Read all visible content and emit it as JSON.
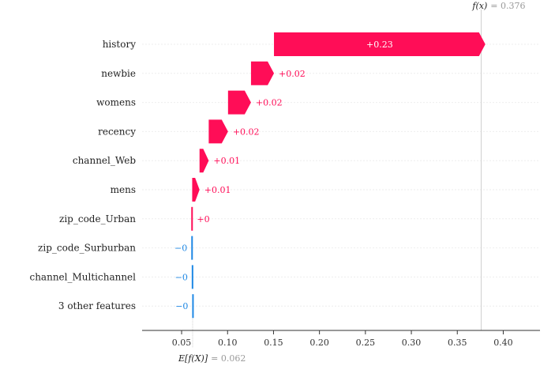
{
  "chart_data": {
    "type": "waterfall",
    "base_value": 0.062,
    "final_value": 0.376,
    "base_label": "E[f(X)]",
    "base_value_label": "= 0.062",
    "final_label": "f(x)",
    "final_value_label": "= 0.376",
    "xlim": [
      0.007,
      0.44
    ],
    "xticks": [
      0.05,
      0.1,
      0.15,
      0.2,
      0.25,
      0.3,
      0.35,
      0.4
    ],
    "xtick_labels": [
      "0.05",
      "0.10",
      "0.15",
      "0.20",
      "0.25",
      "0.30",
      "0.35",
      "0.40"
    ],
    "features": [
      {
        "name": "history",
        "contribution": 0.23,
        "label": "+0.23"
      },
      {
        "name": "newbie",
        "contribution": 0.025,
        "label": "+0.02"
      },
      {
        "name": "womens",
        "contribution": 0.025,
        "label": "+0.02"
      },
      {
        "name": "recency",
        "contribution": 0.021,
        "label": "+0.02"
      },
      {
        "name": "channel_Web",
        "contribution": 0.01,
        "label": "+0.01"
      },
      {
        "name": "mens",
        "contribution": 0.008,
        "label": "+0.01"
      },
      {
        "name": "zip_code_Urban",
        "contribution": 0.001,
        "label": "+0"
      },
      {
        "name": "zip_code_Surburban",
        "contribution": -0.0005,
        "label": "−0"
      },
      {
        "name": "channel_Multichannel",
        "contribution": -0.0005,
        "label": "−0"
      },
      {
        "name": "3 other features",
        "contribution": -0.0005,
        "label": "−0"
      }
    ],
    "colors": {
      "positive": "#ff0d57",
      "negative": "#1e88e5",
      "positive_text": "#ff0d57",
      "negative_text": "#1e88e5"
    }
  }
}
